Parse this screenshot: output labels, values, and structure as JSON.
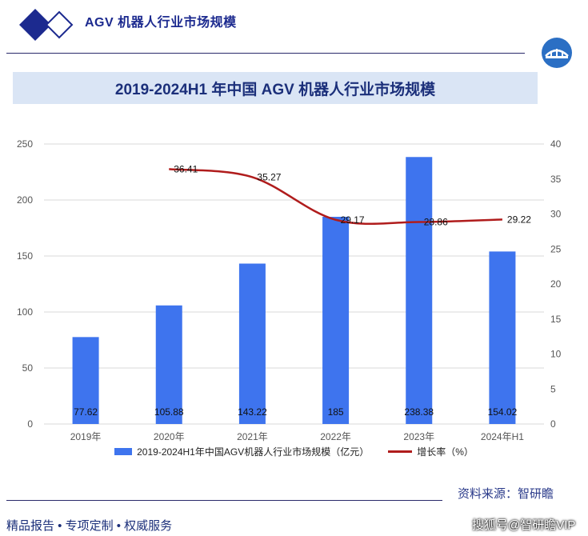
{
  "header": {
    "title": "AGV 机器人行业市场规模"
  },
  "colors": {
    "bar": "#3e74ee",
    "line": "#b01c1c",
    "brand": "#1c2a8f",
    "banner": "#dae5f5"
  },
  "icons": {
    "logo_left": "diamond-logo-icon",
    "logo_right": "bridge-badge-icon"
  },
  "footer": {
    "source": "资料来源：智研瞻",
    "slogan": "精品报告 •  专项定制 • 权威服务",
    "watermark": "搜狐号@智研瞻VIP"
  },
  "chart_data": {
    "type": "bar",
    "title": "2019-2024H1 年中国 AGV 机器人行业市场规模",
    "categories": [
      "2019年",
      "2020年",
      "2021年",
      "2022年",
      "2023年",
      "2024年H1"
    ],
    "ylim": [
      0,
      250
    ],
    "y2lim": [
      0,
      40
    ],
    "yticks": [
      0,
      50,
      100,
      150,
      200,
      250
    ],
    "y2ticks": [
      0,
      5,
      10,
      15,
      20,
      25,
      30,
      35,
      40
    ],
    "grid": true,
    "legend_position": "bottom",
    "series": [
      {
        "name": "2019-2024H1年中国AGV机器人行业市场规模（亿元）",
        "type": "bar",
        "axis": "left",
        "values": [
          77.62,
          105.88,
          143.22,
          185,
          238.38,
          154.02
        ],
        "labels": [
          "77.62",
          "105.88",
          "143.22",
          "185",
          "238.38",
          "154.02"
        ]
      },
      {
        "name": "增长率（%）",
        "type": "line",
        "axis": "right",
        "values": [
          null,
          36.41,
          35.27,
          29.17,
          28.86,
          29.22
        ],
        "labels": [
          "",
          "36.41",
          "35.27",
          "29.17",
          "28.86",
          "29.22"
        ]
      }
    ]
  }
}
